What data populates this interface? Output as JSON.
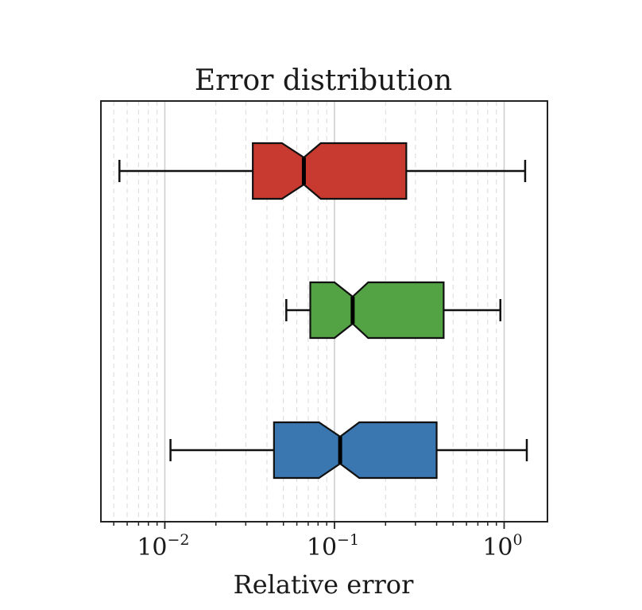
{
  "chart_data": {
    "type": "box",
    "orientation": "horizontal",
    "notched": true,
    "title": "Error distribution",
    "xlabel": "Relative error",
    "ylabel": "",
    "xscale": "log",
    "xlim": [
      0.0042,
      1.8
    ],
    "xticks": [
      {
        "base": "10",
        "exp": "−2",
        "value": 0.01
      },
      {
        "base": "10",
        "exp": "−1",
        "value": 0.1
      },
      {
        "base": "10",
        "exp": "0",
        "value": 1
      }
    ],
    "grid": {
      "major": "solid-light",
      "minor": "dashed-light"
    },
    "series": [
      {
        "color": "#3a76b0",
        "whislo": 0.0108,
        "q1": 0.044,
        "notch_lo": 0.081,
        "med": 0.108,
        "notch_hi": 0.14,
        "q3": 0.4,
        "whishi": 1.36
      },
      {
        "color": "#53a244",
        "whislo": 0.052,
        "q1": 0.072,
        "notch_lo": 0.1,
        "med": 0.128,
        "notch_hi": 0.158,
        "q3": 0.44,
        "whishi": 0.95
      },
      {
        "color": "#c8392f",
        "whislo": 0.0054,
        "q1": 0.033,
        "notch_lo": 0.049,
        "med": 0.066,
        "notch_hi": 0.083,
        "q3": 0.265,
        "whishi": 1.33
      }
    ]
  }
}
